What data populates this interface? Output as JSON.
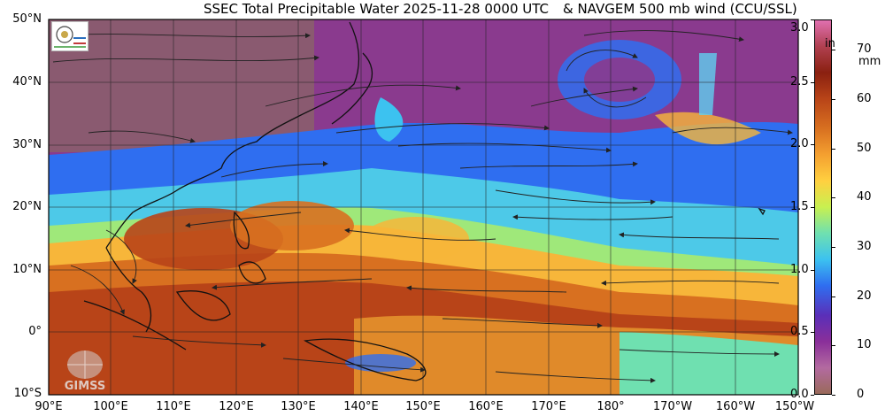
{
  "title": {
    "left": "SSEC Total Precipitable Water  2025-11-28 0000 UTC",
    "right": "& NAVGEM 500 mb wind (CCU/SSL)"
  },
  "lat_labels": [
    "50°N",
    "40°N",
    "30°N",
    "20°N",
    "10°N",
    "0°",
    "10°S"
  ],
  "lon_labels": [
    "90°E",
    "100°E",
    "110°E",
    "120°E",
    "130°E",
    "140°E",
    "150°E",
    "160°E",
    "170°E",
    "180°",
    "170°W",
    "160°W",
    "150°W"
  ],
  "colorbar": {
    "inch_unit": "in",
    "mm_unit": "mm",
    "inch_labels": [
      "3.0",
      "2.5",
      "2.0",
      "1.5",
      "1.0",
      "0.5",
      "0.0"
    ],
    "mm_labels": [
      "70",
      "60",
      "50",
      "40",
      "30",
      "20",
      "10",
      "0"
    ],
    "inch_max": 3.0,
    "mm_max": 76.2,
    "colors": [
      "#9a6a5a",
      "#b36aa0",
      "#8a2f9a",
      "#5a2fb8",
      "#2f6ef0",
      "#3cc2f0",
      "#6fe0b0",
      "#c8f050",
      "#ffd040",
      "#f4a030",
      "#d87020",
      "#b84418",
      "#8a2010",
      "#b04050",
      "#e070b0"
    ]
  },
  "watermark": {
    "text": "GIMSS"
  },
  "logo": {
    "name": "ssec-cimss-logo"
  }
}
